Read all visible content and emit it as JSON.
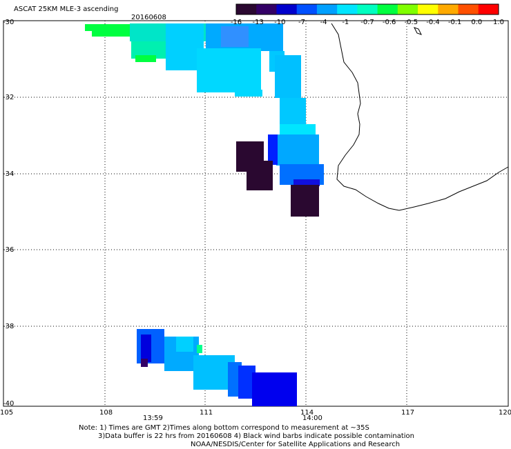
{
  "header": {
    "title": "ASCAT 25KM MLE-3 ascending",
    "date": "20160608"
  },
  "colorbar": {
    "labels": [
      "-16",
      "-13",
      "-10",
      "-7",
      "-4",
      "-1",
      "-0.7",
      "-0.6",
      "-0.5",
      "-0.4",
      "-0.1",
      "0.0",
      "1.0"
    ],
    "colors": [
      "#2a0830",
      "#330066",
      "#0000cc",
      "#0050ff",
      "#00a0ff",
      "#00e5ff",
      "#00ffc0",
      "#00ff40",
      "#80ff00",
      "#ffff00",
      "#ffaa00",
      "#ff5000",
      "#ff0000"
    ]
  },
  "axes": {
    "x_ticks": [
      "105",
      "108",
      "111",
      "114",
      "117",
      "120"
    ],
    "y_ticks": [
      "-30",
      "-32",
      "-34",
      "-36",
      "-38",
      "-40"
    ],
    "lon_range": [
      105,
      120
    ],
    "lat_range": [
      -40,
      -30
    ]
  },
  "times": {
    "left": "13:59",
    "right": "14:00",
    "color": "#cc2200"
  },
  "notes": {
    "line1": "Note: 1) Times are GMT 2)Times along bottom correspond to measurement at ~35S",
    "line2": "3)Data buffer is 22 hrs from 20160608 4) Black wind barbs indicate possible contamination",
    "line3": "NOAA/NESDIS/Center for Satellite Applications and Research"
  }
}
